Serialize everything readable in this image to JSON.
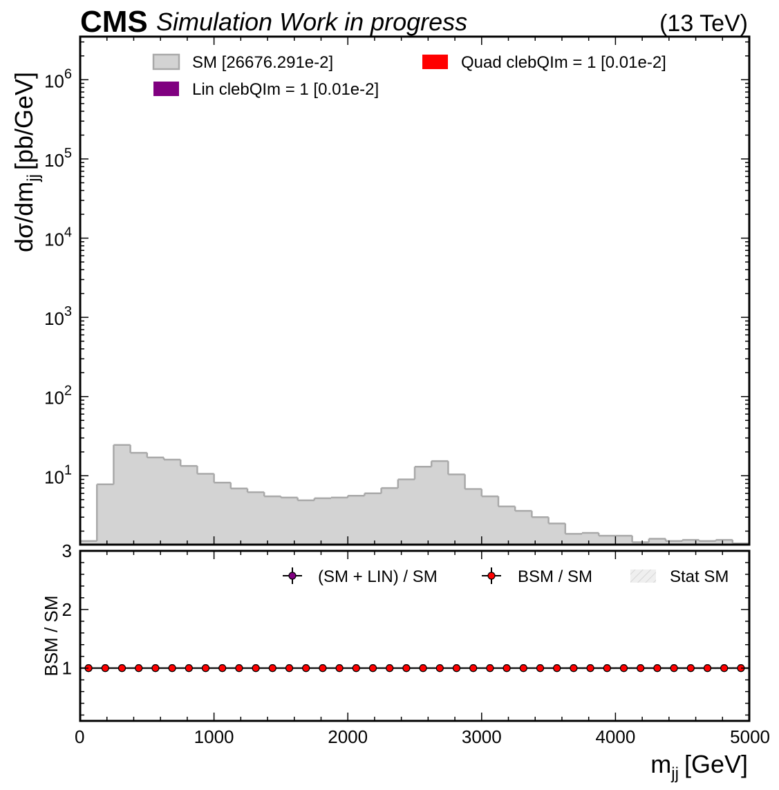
{
  "header": {
    "experiment": "CMS",
    "status": "Simulation Work in progress",
    "energy": "(13 TeV)"
  },
  "colors": {
    "sm_fill": "#d3d3d3",
    "sm_edge": "#a9a9a9",
    "lin": "#800080",
    "quad": "#ff0000",
    "stat_band": "#e6e6e6"
  },
  "chart_data": [
    {
      "type": "bar",
      "subtype": "step-histogram",
      "xlabel": "m",
      "xlabel_sub": "jj",
      "xlabel_unit": "[GeV]",
      "ylabel": "dσ/dm",
      "ylabel_sub": "jj",
      "ylabel_unit": "[pb/GeV]",
      "xlim": [
        0,
        5000
      ],
      "ylim": [
        1.35,
        3500000
      ],
      "yscale": "log",
      "yticks": [
        {
          "value": 10,
          "base": "10",
          "exp": "1"
        },
        {
          "value": 100,
          "base": "10",
          "exp": "2"
        },
        {
          "value": 1000,
          "base": "10",
          "exp": "3"
        },
        {
          "value": 10000,
          "base": "10",
          "exp": "4"
        },
        {
          "value": 100000,
          "base": "10",
          "exp": "5"
        },
        {
          "value": 1000000,
          "base": "10",
          "exp": "6"
        }
      ],
      "legend_position": "top",
      "bin_edges": [
        0,
        125,
        250,
        375,
        500,
        625,
        750,
        875,
        1000,
        1125,
        1250,
        1375,
        1500,
        1625,
        1750,
        1875,
        2000,
        2125,
        2250,
        2375,
        2500,
        2625,
        2750,
        2875,
        3000,
        3125,
        3250,
        3375,
        3500,
        3625,
        3750,
        3875,
        4000,
        4125,
        4250,
        4375,
        4500,
        4625,
        4750,
        4875,
        5000
      ],
      "series": [
        {
          "name": "SM [26676.291e-2]",
          "values": [
            1.5,
            7.8,
            24.5,
            19.5,
            17,
            16,
            13.3,
            10.6,
            8.2,
            6.9,
            6.2,
            5.5,
            5.3,
            4.9,
            5.2,
            5.3,
            5.6,
            6.0,
            7.0,
            9.0,
            13.0,
            15.3,
            10.4,
            6.8,
            5.5,
            4.1,
            3.6,
            3.0,
            2.5,
            1.85,
            1.9,
            1.75,
            1.75,
            1.45,
            1.6,
            1.5,
            1.55,
            1.5,
            1.55,
            1.4
          ]
        },
        {
          "name": "Lin clebQIm = 1 [0.01e-2]",
          "values": []
        },
        {
          "name": "Quad clebQIm = 1 [0.01e-2]",
          "values": []
        }
      ]
    },
    {
      "type": "scatter",
      "ylabel": "BSM / SM",
      "xlim": [
        0,
        5000
      ],
      "ylim": [
        0.1,
        3
      ],
      "yticks": [
        1,
        2,
        3
      ],
      "xticks": [
        0,
        1000,
        2000,
        3000,
        4000,
        5000
      ],
      "legend_position": "top-right",
      "x": [
        62.5,
        187.5,
        312.5,
        437.5,
        562.5,
        687.5,
        812.5,
        937.5,
        1062.5,
        1187.5,
        1312.5,
        1437.5,
        1562.5,
        1687.5,
        1812.5,
        1937.5,
        2062.5,
        2187.5,
        2312.5,
        2437.5,
        2562.5,
        2687.5,
        2812.5,
        2937.5,
        3062.5,
        3187.5,
        3312.5,
        3437.5,
        3562.5,
        3687.5,
        3812.5,
        3937.5,
        4062.5,
        4187.5,
        4312.5,
        4437.5,
        4562.5,
        4687.5,
        4812.5,
        4937.5
      ],
      "series": [
        {
          "name": "(SM + LIN) / SM",
          "values": [
            1,
            1,
            1,
            1,
            1,
            1,
            1,
            1,
            1,
            1,
            1,
            1,
            1,
            1,
            1,
            1,
            1,
            1,
            1,
            1,
            1,
            1,
            1,
            1,
            1,
            1,
            1,
            1,
            1,
            1,
            1,
            1,
            1,
            1,
            1,
            1,
            1,
            1,
            1,
            1
          ]
        },
        {
          "name": "BSM / SM",
          "values": [
            1,
            1,
            1,
            1,
            1,
            1,
            1,
            1,
            1,
            1,
            1,
            1,
            1,
            1,
            1,
            1,
            1,
            1,
            1,
            1,
            1,
            1,
            1,
            1,
            1,
            1,
            1,
            1,
            1,
            1,
            1,
            1,
            1,
            1,
            1,
            1,
            1,
            1,
            1,
            1
          ]
        },
        {
          "name": "Stat SM",
          "values": []
        }
      ],
      "stat_band_halfwidth": [
        0.01,
        0.01,
        0.01,
        0.01,
        0.01,
        0.01,
        0.01,
        0.01,
        0.01,
        0.01,
        0.01,
        0.01,
        0.01,
        0.01,
        0.01,
        0.01,
        0.01,
        0.01,
        0.01,
        0.01,
        0.01,
        0.01,
        0.01,
        0.01,
        0.01,
        0.01,
        0.01,
        0.01,
        0.015,
        0.02,
        0.02,
        0.02,
        0.02,
        0.02,
        0.02,
        0.02,
        0.02,
        0.02,
        0.02,
        0.02
      ]
    }
  ]
}
